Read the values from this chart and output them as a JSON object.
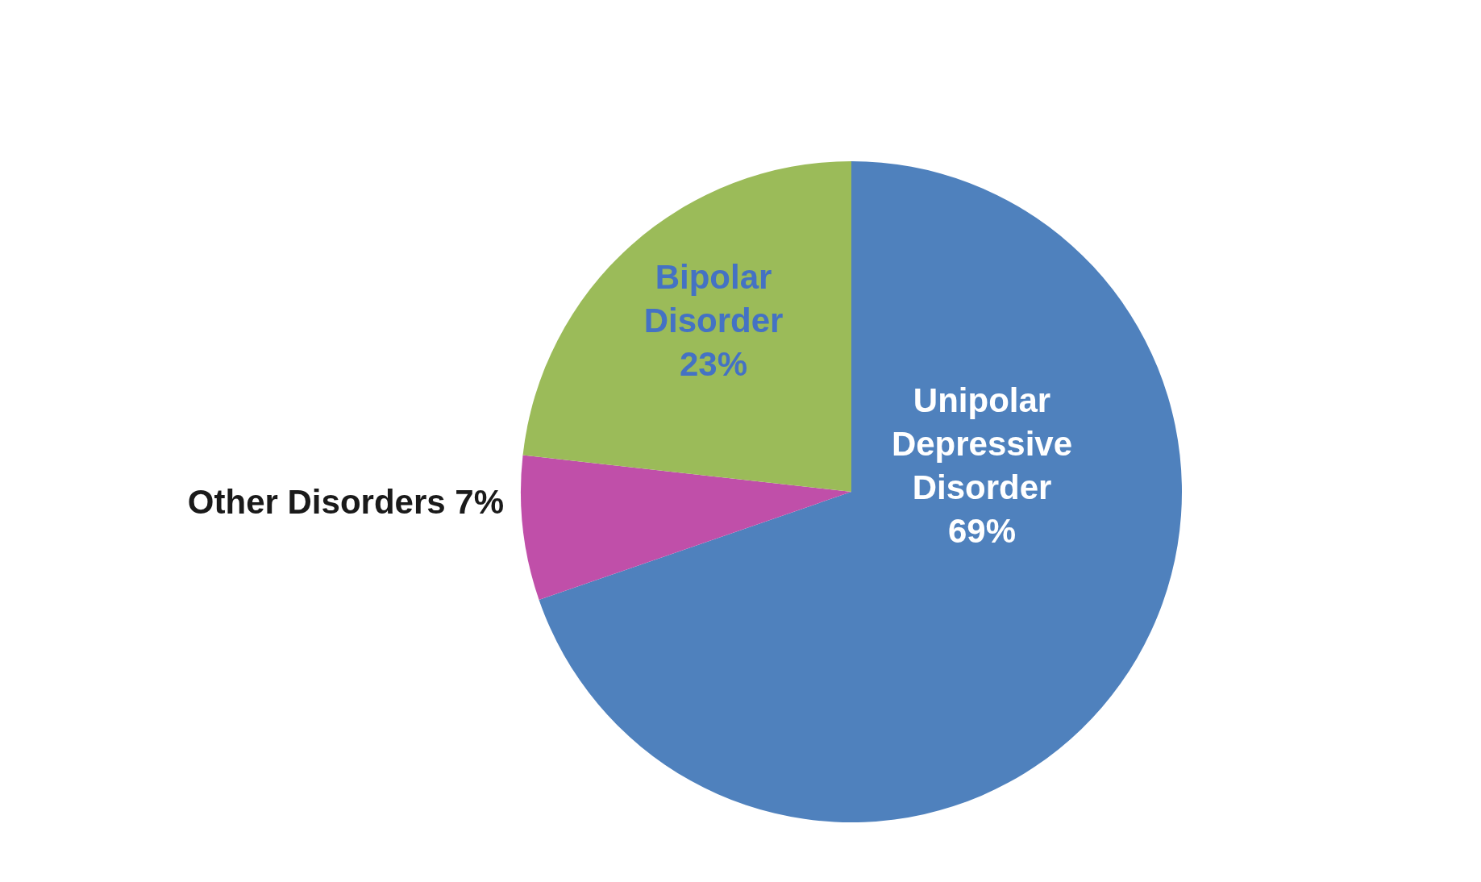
{
  "chart_data": {
    "type": "pie",
    "categories": [
      "Unipolar Depressive Disorder",
      "Other Disorders",
      "Bipolar Disorder"
    ],
    "values": [
      69,
      7,
      23
    ],
    "value_labels": [
      "69%",
      "7%",
      "23%"
    ],
    "colors": [
      "#4f81bd",
      "#c04fa9",
      "#9bbb59"
    ]
  }
}
